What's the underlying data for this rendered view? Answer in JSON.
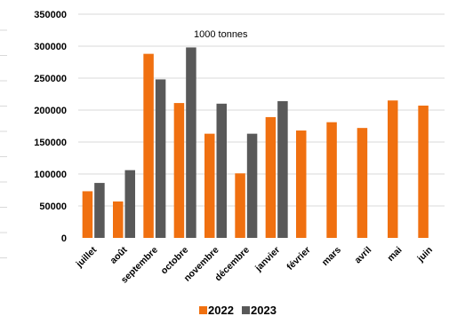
{
  "chart_data": {
    "type": "bar",
    "title": "",
    "annotation": "1000 tonnes",
    "xlabel": "",
    "ylabel": "",
    "ylim": [
      0,
      350000
    ],
    "yticks": [
      0,
      50000,
      100000,
      150000,
      200000,
      250000,
      300000,
      350000
    ],
    "ytick_labels": [
      "0",
      "50000",
      "100000",
      "150000",
      "200000",
      "250000",
      "300000",
      "350000"
    ],
    "grid": true,
    "legend_position": "bottom",
    "categories": [
      "juillet",
      "août",
      "septembre",
      "octobre",
      "novembre",
      "décembre",
      "janvier",
      "février",
      "mars",
      "avril",
      "mai",
      "juin"
    ],
    "series": [
      {
        "name": "2022",
        "color": "#f07010",
        "values": [
          73000,
          57000,
          288000,
          211000,
          163000,
          101000,
          189000,
          168000,
          181000,
          172000,
          215000,
          207000
        ]
      },
      {
        "name": "2023",
        "color": "#595959",
        "values": [
          86000,
          106000,
          248000,
          298000,
          210000,
          163000,
          214000,
          null,
          null,
          null,
          null,
          null
        ]
      }
    ]
  }
}
